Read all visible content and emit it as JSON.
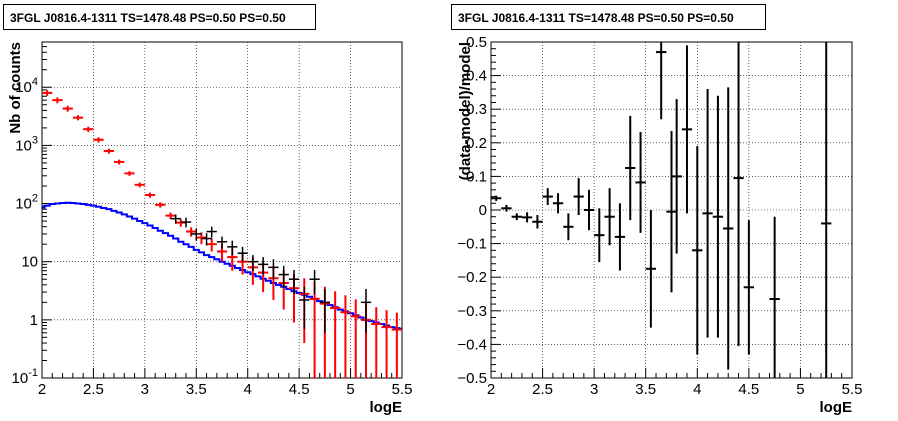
{
  "chart_data": [
    {
      "type": "step+errorbar",
      "title": "3FGL J0816.4-1311 TS=1478.48 PS=0.50 PS=0.50",
      "xlabel": "logE",
      "ylabel": "Nb of counts",
      "log_y": true,
      "xlim": [
        2.0,
        5.5
      ],
      "ylim": [
        0.1,
        60000
      ],
      "grid": true,
      "x_ticks": [
        "2",
        "2.5",
        "3",
        "3.5",
        "4",
        "4.5",
        "5",
        "5.5"
      ],
      "y_ticks": [
        {
          "base": "10",
          "exp": "-1"
        },
        {
          "base": "1",
          "exp": ""
        },
        {
          "base": "10",
          "exp": ""
        },
        {
          "base": "10",
          "exp": "2"
        },
        {
          "base": "10",
          "exp": "3"
        },
        {
          "base": "10",
          "exp": "4"
        }
      ],
      "colors": {
        "data": "#000000",
        "model": "#ff0000",
        "component": "#0000ff"
      },
      "data": [
        {
          "x": 3.3,
          "y": 55,
          "err": 10
        },
        {
          "x": 3.4,
          "y": 48,
          "err": 9
        },
        {
          "x": 3.5,
          "y": 30,
          "err": 7
        },
        {
          "x": 3.6,
          "y": 25,
          "err": 6
        },
        {
          "x": 3.65,
          "y": 33,
          "err": 7
        },
        {
          "x": 3.75,
          "y": 22,
          "err": 5
        },
        {
          "x": 3.85,
          "y": 18,
          "err": 5
        },
        {
          "x": 3.95,
          "y": 14,
          "err": 4
        },
        {
          "x": 4.05,
          "y": 10,
          "err": 3
        },
        {
          "x": 4.15,
          "y": 9,
          "err": 3
        },
        {
          "x": 4.25,
          "y": 8,
          "err": 3
        },
        {
          "x": 4.35,
          "y": 6,
          "err": 2.5
        },
        {
          "x": 4.45,
          "y": 5,
          "err": 2.2
        },
        {
          "x": 4.55,
          "y": 2.2,
          "err": 1.5
        },
        {
          "x": 4.65,
          "y": 5,
          "err": 2.2
        },
        {
          "x": 4.75,
          "y": 2,
          "err": 1.4
        },
        {
          "x": 5.15,
          "y": 2,
          "err": 1.4
        }
      ],
      "model": [
        {
          "x": 2.05,
          "y": 8000,
          "err": 900
        },
        {
          "x": 2.15,
          "y": 6000,
          "err": 700
        },
        {
          "x": 2.25,
          "y": 4300,
          "err": 500
        },
        {
          "x": 2.35,
          "y": 3000,
          "err": 300
        },
        {
          "x": 2.45,
          "y": 1900,
          "err": 200
        },
        {
          "x": 2.55,
          "y": 1250,
          "err": 130
        },
        {
          "x": 2.65,
          "y": 800,
          "err": 80
        },
        {
          "x": 2.75,
          "y": 520,
          "err": 50
        },
        {
          "x": 2.85,
          "y": 330,
          "err": 30
        },
        {
          "x": 2.95,
          "y": 210,
          "err": 20
        },
        {
          "x": 3.05,
          "y": 140,
          "err": 14
        },
        {
          "x": 3.15,
          "y": 95,
          "err": 10
        },
        {
          "x": 3.25,
          "y": 62,
          "err": 8
        },
        {
          "x": 3.35,
          "y": 47,
          "err": 7
        },
        {
          "x": 3.45,
          "y": 33,
          "err": 6
        },
        {
          "x": 3.55,
          "y": 26,
          "err": 6
        },
        {
          "x": 3.65,
          "y": 20,
          "err": 5
        },
        {
          "x": 3.75,
          "y": 15,
          "err": 5
        },
        {
          "x": 3.85,
          "y": 12,
          "err": 5
        },
        {
          "x": 3.95,
          "y": 10,
          "err": 4
        },
        {
          "x": 4.05,
          "y": 8,
          "err": 4
        },
        {
          "x": 4.15,
          "y": 6.5,
          "err": 3.5
        },
        {
          "x": 4.25,
          "y": 5.2,
          "err": 3
        },
        {
          "x": 4.35,
          "y": 4.3,
          "err": 2.8
        },
        {
          "x": 4.45,
          "y": 3.5,
          "err": 2.6
        },
        {
          "x": 4.55,
          "y": 2.8,
          "err": 2.4
        },
        {
          "x": 4.65,
          "y": 2.3,
          "err": 2.2
        },
        {
          "x": 4.75,
          "y": 1.9,
          "err": 1.8
        },
        {
          "x": 4.85,
          "y": 1.6,
          "err": 1.5
        },
        {
          "x": 4.95,
          "y": 1.35,
          "err": 1.3
        },
        {
          "x": 5.05,
          "y": 1.15,
          "err": 1.1
        },
        {
          "x": 5.15,
          "y": 1.0,
          "err": 0.95
        },
        {
          "x": 5.25,
          "y": 0.85,
          "err": 0.8
        },
        {
          "x": 5.35,
          "y": 0.75,
          "err": 0.72
        },
        {
          "x": 5.45,
          "y": 0.68,
          "err": 0.65
        }
      ],
      "component": [
        {
          "x": 2.0,
          "y": 85
        },
        {
          "x": 2.05,
          "y": 92
        },
        {
          "x": 2.1,
          "y": 98
        },
        {
          "x": 2.15,
          "y": 100
        },
        {
          "x": 2.2,
          "y": 102
        },
        {
          "x": 2.25,
          "y": 103
        },
        {
          "x": 2.3,
          "y": 102
        },
        {
          "x": 2.35,
          "y": 100
        },
        {
          "x": 2.4,
          "y": 98
        },
        {
          "x": 2.45,
          "y": 95
        },
        {
          "x": 2.5,
          "y": 92
        },
        {
          "x": 2.55,
          "y": 88
        },
        {
          "x": 2.6,
          "y": 84
        },
        {
          "x": 2.65,
          "y": 80
        },
        {
          "x": 2.7,
          "y": 75
        },
        {
          "x": 2.75,
          "y": 70
        },
        {
          "x": 2.8,
          "y": 65
        },
        {
          "x": 2.85,
          "y": 60
        },
        {
          "x": 2.9,
          "y": 55
        },
        {
          "x": 2.95,
          "y": 50
        },
        {
          "x": 3.0,
          "y": 46
        },
        {
          "x": 3.05,
          "y": 42
        },
        {
          "x": 3.1,
          "y": 38
        },
        {
          "x": 3.15,
          "y": 34
        },
        {
          "x": 3.2,
          "y": 31
        },
        {
          "x": 3.25,
          "y": 28
        },
        {
          "x": 3.3,
          "y": 25
        },
        {
          "x": 3.35,
          "y": 22
        },
        {
          "x": 3.4,
          "y": 20
        },
        {
          "x": 3.45,
          "y": 18
        },
        {
          "x": 3.5,
          "y": 16
        },
        {
          "x": 3.55,
          "y": 14.5
        },
        {
          "x": 3.6,
          "y": 13
        },
        {
          "x": 3.65,
          "y": 12
        },
        {
          "x": 3.7,
          "y": 11
        },
        {
          "x": 3.75,
          "y": 10
        },
        {
          "x": 3.8,
          "y": 9.2
        },
        {
          "x": 3.85,
          "y": 8.5
        },
        {
          "x": 3.9,
          "y": 7.8
        },
        {
          "x": 3.95,
          "y": 7.2
        },
        {
          "x": 4.0,
          "y": 6.6
        },
        {
          "x": 4.05,
          "y": 6.1
        },
        {
          "x": 4.1,
          "y": 5.6
        },
        {
          "x": 4.15,
          "y": 5.1
        },
        {
          "x": 4.2,
          "y": 4.7
        },
        {
          "x": 4.25,
          "y": 4.3
        },
        {
          "x": 4.3,
          "y": 4.0
        },
        {
          "x": 4.35,
          "y": 3.7
        },
        {
          "x": 4.4,
          "y": 3.4
        },
        {
          "x": 4.45,
          "y": 3.1
        },
        {
          "x": 4.5,
          "y": 2.9
        },
        {
          "x": 4.55,
          "y": 2.7
        },
        {
          "x": 4.6,
          "y": 2.5
        },
        {
          "x": 4.65,
          "y": 2.3
        },
        {
          "x": 4.7,
          "y": 2.1
        },
        {
          "x": 4.75,
          "y": 1.95
        },
        {
          "x": 4.8,
          "y": 1.8
        },
        {
          "x": 4.85,
          "y": 1.65
        },
        {
          "x": 4.9,
          "y": 1.5
        },
        {
          "x": 4.95,
          "y": 1.4
        },
        {
          "x": 5.0,
          "y": 1.3
        },
        {
          "x": 5.05,
          "y": 1.2
        },
        {
          "x": 5.1,
          "y": 1.1
        },
        {
          "x": 5.15,
          "y": 1.0
        },
        {
          "x": 5.2,
          "y": 0.95
        },
        {
          "x": 5.25,
          "y": 0.9
        },
        {
          "x": 5.3,
          "y": 0.85
        },
        {
          "x": 5.35,
          "y": 0.8
        },
        {
          "x": 5.4,
          "y": 0.75
        },
        {
          "x": 5.45,
          "y": 0.72
        },
        {
          "x": 5.5,
          "y": 0.7
        }
      ]
    },
    {
      "type": "errorbar",
      "title": "3FGL J0816.4-1311 TS=1478.48 PS=0.50 PS=0.50",
      "xlabel": "logE",
      "ylabel": "(data-model)/model",
      "xlim": [
        2.0,
        5.5
      ],
      "ylim": [
        -0.5,
        0.5
      ],
      "grid": true,
      "x_ticks": [
        "2",
        "2.5",
        "3",
        "3.5",
        "4",
        "4.5",
        "5",
        "5.5"
      ],
      "y_ticks": [
        "−0.5",
        "−0.4",
        "−0.3",
        "−0.2",
        "−0.1",
        "0",
        "0.1",
        "0.2",
        "0.3",
        "0.4",
        "0.5"
      ],
      "colors": {
        "data": "#000000"
      },
      "points": [
        {
          "x": 2.05,
          "y": 0.035,
          "err": 0.008
        },
        {
          "x": 2.15,
          "y": 0.005,
          "err": 0.01
        },
        {
          "x": 2.25,
          "y": -0.02,
          "err": 0.01
        },
        {
          "x": 2.35,
          "y": -0.022,
          "err": 0.015
        },
        {
          "x": 2.45,
          "y": -0.035,
          "err": 0.02
        },
        {
          "x": 2.55,
          "y": 0.04,
          "err": 0.025
        },
        {
          "x": 2.65,
          "y": 0.02,
          "err": 0.03
        },
        {
          "x": 2.75,
          "y": -0.05,
          "err": 0.04
        },
        {
          "x": 2.85,
          "y": 0.04,
          "err": 0.055
        },
        {
          "x": 2.95,
          "y": 0.0,
          "err": 0.06
        },
        {
          "x": 3.05,
          "y": -0.075,
          "err": 0.08
        },
        {
          "x": 3.15,
          "y": -0.02,
          "err": 0.085
        },
        {
          "x": 3.25,
          "y": -0.08,
          "err": 0.1
        },
        {
          "x": 3.35,
          "y": 0.125,
          "err": 0.155
        },
        {
          "x": 3.45,
          "y": 0.082,
          "err": 0.15
        },
        {
          "x": 3.55,
          "y": -0.175,
          "err": 0.175
        },
        {
          "x": 3.65,
          "y": 0.47,
          "err": 0.2
        },
        {
          "x": 3.75,
          "y": -0.005,
          "err": 0.24
        },
        {
          "x": 3.8,
          "y": 0.1,
          "err": 0.23
        },
        {
          "x": 3.9,
          "y": 0.24,
          "err": 0.25
        },
        {
          "x": 4.0,
          "y": -0.12,
          "err": 0.31
        },
        {
          "x": 4.1,
          "y": -0.01,
          "err": 0.37
        },
        {
          "x": 4.2,
          "y": -0.02,
          "err": 0.36
        },
        {
          "x": 4.3,
          "y": -0.055,
          "err": 0.42
        },
        {
          "x": 4.4,
          "y": 0.095,
          "err": 0.5
        },
        {
          "x": 4.5,
          "y": -0.23,
          "err": 0.2
        },
        {
          "x": 4.75,
          "y": -0.265,
          "err": 0.245
        },
        {
          "x": 5.25,
          "y": -0.04,
          "err": 0.6
        }
      ]
    }
  ]
}
